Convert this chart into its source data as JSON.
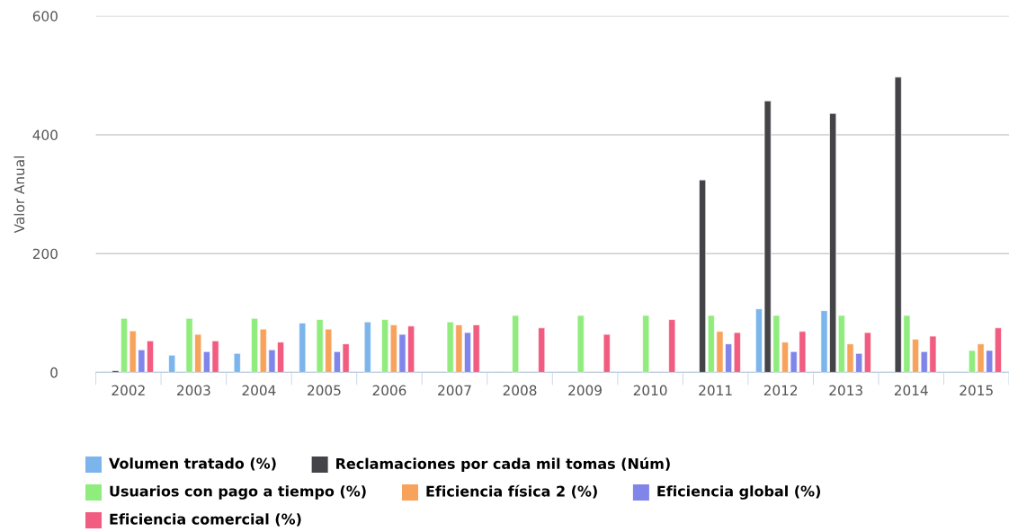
{
  "chart_data": {
    "type": "bar",
    "ylabel": "Valor Anual",
    "categories": [
      "2002",
      "2003",
      "2004",
      "2005",
      "2006",
      "2007",
      "2008",
      "2009",
      "2010",
      "2011",
      "2012",
      "2013",
      "2014",
      "2015"
    ],
    "ylim": [
      0,
      600
    ],
    "yticks": [
      0,
      200,
      400,
      600
    ],
    "grid": "y",
    "legend": "bottom",
    "series": [
      {
        "name": "Volumen tratado (%)",
        "color": "#7cb5ec",
        "values": [
          null,
          29,
          32,
          83,
          85,
          null,
          null,
          null,
          null,
          null,
          107,
          104,
          null,
          null
        ]
      },
      {
        "name": "Reclamaciones por cada mil tomas (Núm)",
        "color": "#434348",
        "values": [
          3,
          null,
          null,
          null,
          null,
          null,
          null,
          null,
          null,
          324,
          457,
          436,
          497,
          null
        ]
      },
      {
        "name": "Usuarios con pago a tiempo (%)",
        "color": "#90ed7d",
        "values": [
          91,
          91,
          91,
          89,
          89,
          85,
          96,
          96,
          96,
          96,
          96,
          96,
          96,
          37
        ]
      },
      {
        "name": "Eficiencia física 2 (%)",
        "color": "#f7a35c",
        "values": [
          70,
          64,
          73,
          73,
          80,
          80,
          null,
          null,
          null,
          69,
          51,
          48,
          56,
          48
        ]
      },
      {
        "name": "Eficiencia global (%)",
        "color": "#8085e9",
        "values": [
          38,
          35,
          38,
          35,
          64,
          67,
          null,
          null,
          null,
          48,
          35,
          32,
          35,
          37
        ]
      },
      {
        "name": "Eficiencia comercial (%)",
        "color": "#f15c80",
        "values": [
          53,
          53,
          51,
          48,
          78,
          80,
          75,
          64,
          89,
          67,
          69,
          67,
          61,
          75
        ]
      }
    ]
  }
}
